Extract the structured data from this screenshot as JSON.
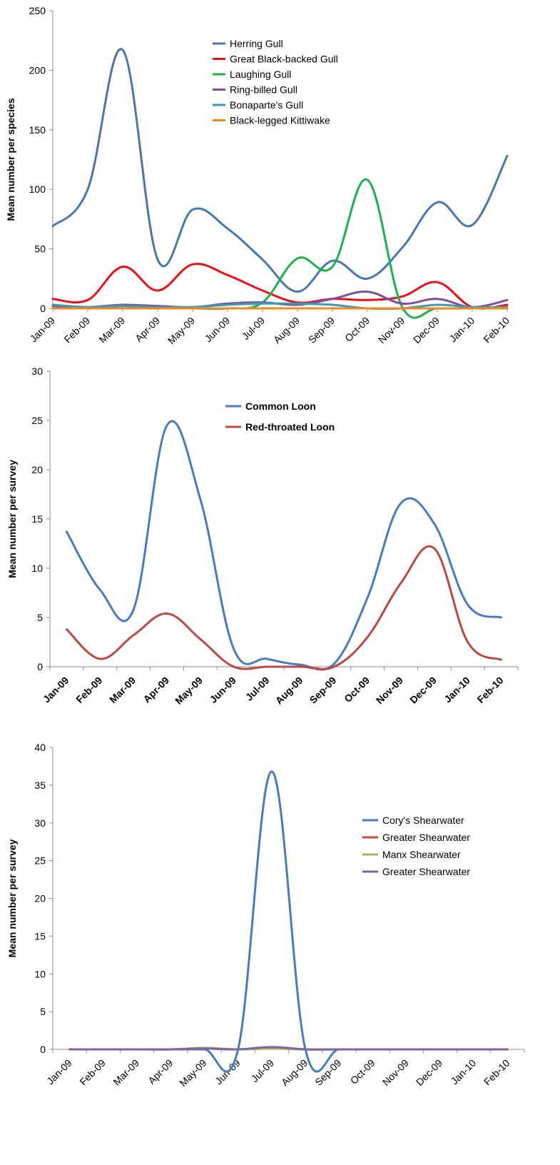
{
  "chart_data": [
    {
      "type": "line",
      "ylabel": "Mean number per species",
      "ylim": [
        0,
        250
      ],
      "yticks": [
        0,
        50,
        100,
        150,
        200,
        250
      ],
      "categories": [
        "Jan-09",
        "Feb-09",
        "Mar-09",
        "Apr-09",
        "May-09",
        "Jun-09",
        "Jul-09",
        "Aug-09",
        "Sep-09",
        "Oct-09",
        "Nov-09",
        "Dec-09",
        "Jan-10",
        "Feb-10"
      ],
      "legend_position": "top-center",
      "series": [
        {
          "name": "Herring Gull",
          "color": "#4a76b0",
          "values": [
            69,
            100,
            217,
            41,
            83,
            67,
            41,
            14,
            40,
            25,
            51,
            89,
            70,
            128
          ]
        },
        {
          "name": "Great Black-backed Gull",
          "color": "#e8101a",
          "values": [
            8,
            7,
            35,
            15,
            37,
            28,
            15,
            5,
            8,
            7,
            10,
            22,
            1,
            3
          ]
        },
        {
          "name": "Laughing Gull",
          "color": "#1eb04e",
          "values": [
            0,
            0,
            0,
            0,
            0,
            0,
            5,
            42,
            35,
            108,
            1,
            0,
            0,
            0
          ]
        },
        {
          "name": "Ring-billed Gull",
          "color": "#7e4f9b",
          "values": [
            2,
            1,
            3,
            2,
            1,
            4,
            5,
            3,
            8,
            14,
            4,
            8,
            1,
            7
          ]
        },
        {
          "name": "Bonaparte's Gull",
          "color": "#3d9ab1",
          "values": [
            3,
            1,
            2,
            1,
            1,
            3,
            4,
            4,
            3,
            0,
            0,
            3,
            1,
            1
          ]
        },
        {
          "name": "Black-legged Kittiwake",
          "color": "#f08a23",
          "values": [
            0,
            0,
            0,
            0,
            0,
            0,
            0,
            0,
            0,
            0,
            0,
            0,
            0,
            0
          ]
        }
      ]
    },
    {
      "type": "line",
      "ylabel": "Mean number per survey",
      "ylim": [
        0,
        30
      ],
      "yticks": [
        0,
        5,
        10,
        15,
        20,
        25,
        30
      ],
      "categories": [
        "Jan-09",
        "Feb-09",
        "Mar-09",
        "Apr-09",
        "May-09",
        "Jun-09",
        "Jul-09",
        "Aug-09",
        "Sep-09",
        "Oct-09",
        "Nov-09",
        "Dec-09",
        "Jan-10",
        "Feb-10"
      ],
      "legend_position": "top-center",
      "series": [
        {
          "name": "Common Loon",
          "color": "#4a7bbd",
          "values": [
            13.7,
            7.8,
            5.8,
            24.5,
            17.0,
            1.8,
            0.8,
            0.2,
            0.3,
            7.0,
            16.6,
            14.5,
            6.3,
            5.0
          ]
        },
        {
          "name": "Red-throated Loon",
          "color": "#b94a48",
          "values": [
            3.8,
            0.8,
            3.2,
            5.4,
            2.8,
            0.0,
            0.0,
            0.0,
            0.0,
            3.0,
            8.5,
            12.0,
            2.5,
            0.7
          ]
        }
      ]
    },
    {
      "type": "line",
      "ylabel": "Mean number per survey",
      "ylim": [
        0,
        40
      ],
      "yticks": [
        0,
        5,
        10,
        15,
        20,
        25,
        30,
        35,
        40
      ],
      "categories": [
        "Jan-09",
        "Feb-09",
        "Mar-09",
        "Apr-09",
        "May-09",
        "Jun-09",
        "Jul-09",
        "Aug-09",
        "Sep-09",
        "Oct-09",
        "Nov-09",
        "Dec-09",
        "Jan-10",
        "Feb-10"
      ],
      "legend_position": "right",
      "series": [
        {
          "name": "Cory's Shearwater",
          "color": "#4a7bbd",
          "values": [
            0,
            0,
            0,
            0,
            0,
            0,
            36.8,
            0,
            0,
            0,
            0,
            0,
            0,
            0
          ]
        },
        {
          "name": "Greater Shearwater",
          "color": "#c0504d",
          "values": [
            0,
            0,
            0,
            0,
            0.1,
            0,
            0.2,
            0,
            0,
            0,
            0,
            0,
            0,
            0
          ]
        },
        {
          "name": "Manx Shearwater",
          "color": "#9bbb59",
          "values": [
            0,
            0,
            0,
            0,
            0.2,
            0,
            0.1,
            0,
            0,
            0,
            0,
            0,
            0,
            0
          ]
        },
        {
          "name": "Greater Shearwater",
          "color": "#8064a2",
          "values": [
            0,
            0,
            0,
            0,
            0.1,
            0,
            0.3,
            0,
            0,
            0,
            0,
            0,
            0,
            0
          ]
        }
      ]
    }
  ]
}
